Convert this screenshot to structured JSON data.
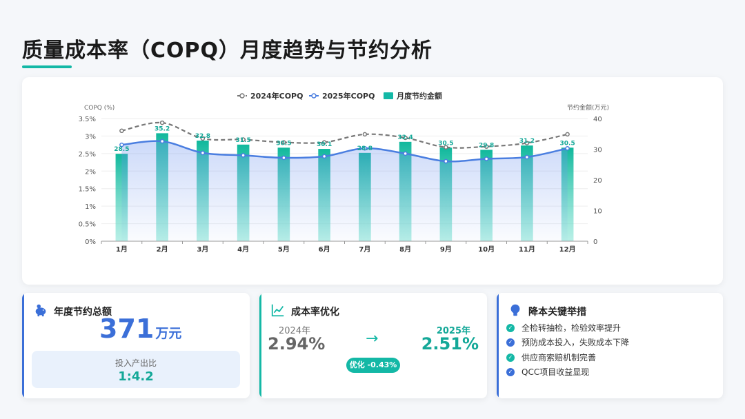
{
  "page": {
    "title": "质量成本率（COPQ）月度趋势与节约分析"
  },
  "colors": {
    "primary_blue": "#3b6fd8",
    "teal": "#14b8a6",
    "gray_dashed": "#777777"
  },
  "chart_data": {
    "type": "bar+line",
    "categories": [
      "1月",
      "2月",
      "3月",
      "4月",
      "5月",
      "6月",
      "7月",
      "8月",
      "9月",
      "10月",
      "11月",
      "12月"
    ],
    "left_axis": {
      "label": "COPQ (%)",
      "ticks": [
        "0%",
        "0.5%",
        "1%",
        "1.5%",
        "2%",
        "2.5%",
        "3%",
        "3.5%"
      ],
      "range": [
        0,
        3.5
      ]
    },
    "right_axis": {
      "label": "节约金额(万元)",
      "ticks": [
        "0",
        "10",
        "20",
        "30",
        "40"
      ],
      "range": [
        0,
        40
      ]
    },
    "legend": [
      "2024年COPQ",
      "2025年COPQ",
      "月度节约金额"
    ],
    "legend_position": "top-center",
    "series": [
      {
        "name": "2024年COPQ",
        "type": "line",
        "style": "dashed",
        "color": "#777777",
        "values": [
          3.15,
          3.38,
          2.93,
          2.9,
          2.82,
          2.82,
          3.05,
          2.95,
          2.68,
          2.7,
          2.8,
          3.05
        ]
      },
      {
        "name": "2025年COPQ",
        "type": "line",
        "style": "solid",
        "area": true,
        "color": "#4a7ee0",
        "values": [
          2.75,
          2.85,
          2.52,
          2.45,
          2.38,
          2.42,
          2.65,
          2.5,
          2.28,
          2.35,
          2.4,
          2.65
        ]
      },
      {
        "name": "月度节约金额",
        "type": "bar",
        "axis": "right",
        "color": "#14b8a6",
        "values": [
          28.5,
          35.2,
          32.8,
          31.5,
          30.5,
          30.1,
          28.8,
          32.4,
          30.5,
          29.8,
          31.2,
          30.5
        ],
        "labels": [
          "28.5",
          "35.2",
          "32.8",
          "31.5",
          "30.5",
          "30.1",
          "28.8",
          "32.4",
          "30.5",
          "29.8",
          "31.2",
          "30.5"
        ]
      }
    ]
  },
  "savings_card": {
    "title": "年度节约总额",
    "value": "371",
    "unit": "万元",
    "ratio_label": "投入产出比",
    "ratio_value": "1:4.2"
  },
  "rate_card": {
    "title": "成本率优化",
    "year_before": "2024年",
    "value_before": "2.94%",
    "arrow": "→",
    "year_after": "2025年",
    "value_after": "2.51%",
    "pill": "优化 -0.43%"
  },
  "measures_card": {
    "title": "降本关键举措",
    "items": [
      "全检转抽检，检验效率提升",
      "预防成本投入，失败成本下降",
      "供应商索赔机制完善",
      "QCC项目收益显现"
    ],
    "item_dot_colors": [
      "#14b8a6",
      "#3b6fd8",
      "#14b8a6",
      "#3b6fd8"
    ]
  }
}
